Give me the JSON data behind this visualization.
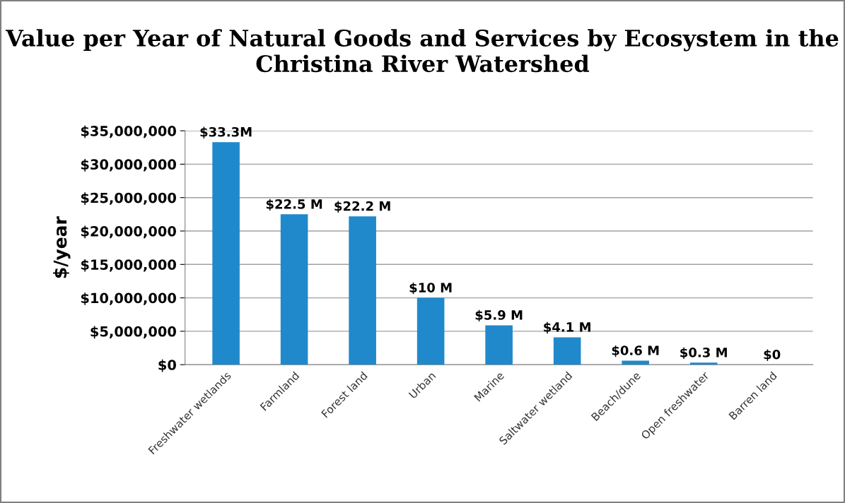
{
  "chart_data": {
    "type": "bar",
    "title": "Value per Year of Natural Goods and Services by Ecosystem in the Christina River Watershed",
    "ylabel": "$/year",
    "categories": [
      "Freshwater wetlands",
      "Farmland",
      "Forest land",
      "Urban",
      "Marine",
      "Saltwater wetland",
      "Beach/dune",
      "Open freshwater",
      "Barren land"
    ],
    "values": [
      33300000,
      22500000,
      22200000,
      10000000,
      5900000,
      4100000,
      600000,
      300000,
      0
    ],
    "value_labels": [
      "$33.3M",
      "$22.5 M",
      "$22.2 M",
      "$10 M",
      "$5.9 M",
      "$4.1 M",
      "$0.6 M",
      "$0.3 M",
      "$0"
    ],
    "color": "#2089cc",
    "ylim": [
      0,
      35000000
    ],
    "yticks": [
      {
        "value": 0,
        "label": "$0"
      },
      {
        "value": 5000000,
        "label": "$5,000,000"
      },
      {
        "value": 10000000,
        "label": "$10,000,000"
      },
      {
        "value": 15000000,
        "label": "$15,000,000"
      },
      {
        "value": 20000000,
        "label": "$20,000,000"
      },
      {
        "value": 25000000,
        "label": "$25,000,000"
      },
      {
        "value": 30000000,
        "label": "$30,000,000"
      },
      {
        "value": 35000000,
        "label": "$35,000,000"
      }
    ],
    "grid": "y",
    "legend": false
  }
}
